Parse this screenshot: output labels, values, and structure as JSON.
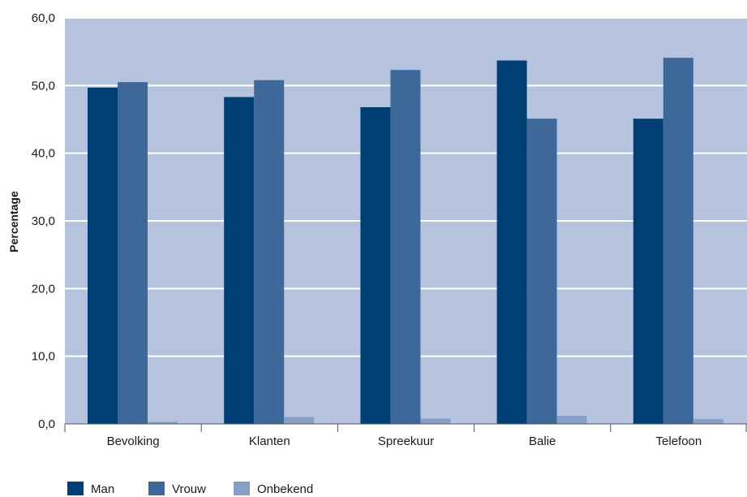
{
  "chart_data": {
    "type": "bar",
    "title": "",
    "xlabel": "",
    "ylabel": "Percentage",
    "categories": [
      "Bevolking",
      "Klanten",
      "Spreekuur",
      "Balie",
      "Telefoon"
    ],
    "series": [
      {
        "name": "Man",
        "values": [
          49.7,
          48.3,
          46.8,
          53.7,
          45.1
        ],
        "color": "#003f76"
      },
      {
        "name": "Vrouw",
        "values": [
          50.5,
          50.8,
          52.3,
          45.1,
          54.1
        ],
        "color": "#3d6899"
      },
      {
        "name": "Onbekend",
        "values": [
          0.3,
          1.0,
          0.8,
          1.2,
          0.7
        ],
        "color": "#879fc6"
      }
    ],
    "ylim": [
      0,
      60
    ],
    "yticks": [
      "0,0",
      "10,0",
      "20,0",
      "30,0",
      "40,0",
      "50,0",
      "60,0"
    ],
    "grid": true,
    "legend_position": "bottom-left",
    "background_color": "#b6c3de",
    "grid_color": "#ffffff"
  }
}
